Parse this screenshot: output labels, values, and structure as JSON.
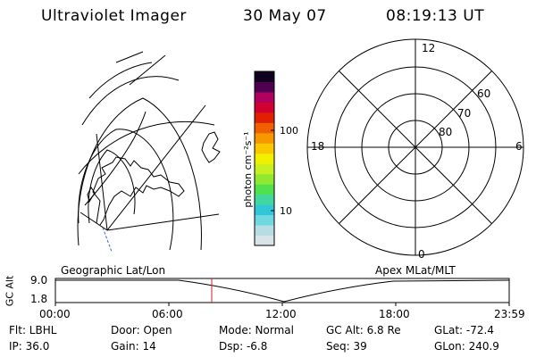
{
  "header": {
    "instrument": "Ultraviolet Imager",
    "date": "30 May 07",
    "time": "08:19:13 UT"
  },
  "colorbar": {
    "unit_label": "photon cm⁻²s⁻¹",
    "ticks": [
      "100",
      "10"
    ],
    "colors": [
      "#d8e4e8",
      "#b8dce4",
      "#70d8e0",
      "#30c8d8",
      "#40d8a0",
      "#50e050",
      "#90e830",
      "#c8f020",
      "#f0f000",
      "#f8c800",
      "#f89800",
      "#f06000",
      "#e02000",
      "#d00030",
      "#b00060",
      "#500050",
      "#100020"
    ]
  },
  "polar_plot": {
    "mlt_labels": {
      "top": "12",
      "left": "18",
      "right": "6",
      "bottom": "0"
    },
    "lat_labels": [
      "60",
      "70",
      "80"
    ]
  },
  "timeline": {
    "left_label": "Geographic Lat/Lon",
    "right_label": "Apex MLat/MLT",
    "axis_label": "GC Alt",
    "y_ticks": [
      "9.0",
      "1.8"
    ],
    "x_ticks": [
      "00:00",
      "06:00",
      "12:00",
      "18:00",
      "23:59"
    ],
    "marker_color": "#d02020"
  },
  "info": {
    "flt": "Flt: LBHL",
    "door": "Door: Open",
    "mode": "Mode: Normal",
    "gc_alt": "GC Alt: 6.8 Re",
    "glat": "GLat: -72.4",
    "ip": "IP: 36.0",
    "gain": "Gain: 14",
    "dsp": "Dsp:    -6.8",
    "seq": "Seq: 39",
    "glon": "GLon: 240.9"
  }
}
